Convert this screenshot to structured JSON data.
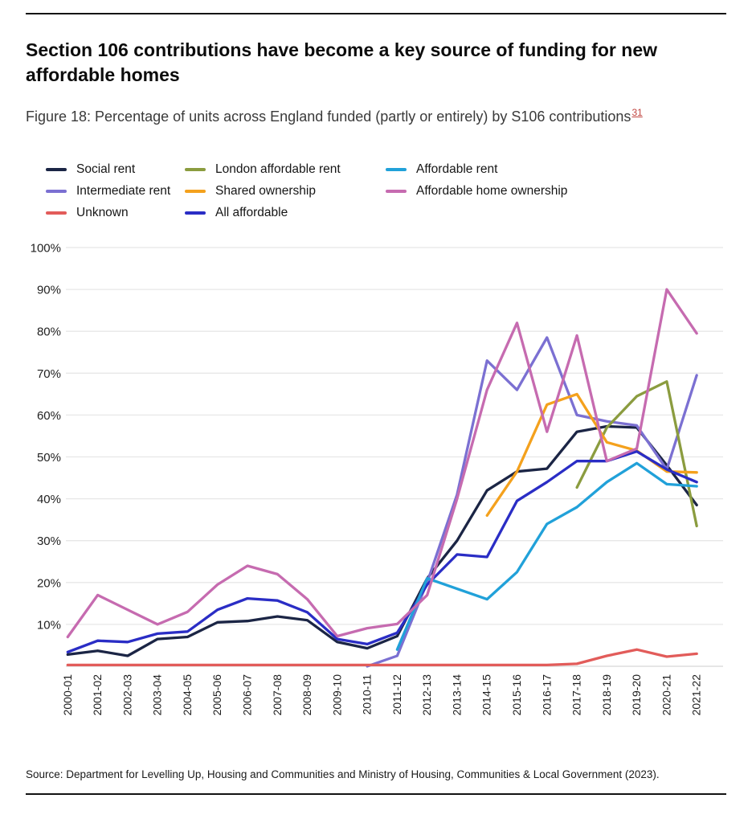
{
  "page": {
    "title": "Section 106 contributions have become a key source of funding for new affordable homes",
    "figure_caption": "Figure 18: Percentage of units across England funded (partly or entirely) by S106 contributions",
    "footnote_ref": "31",
    "source": "Source: Department for Levelling Up, Housing and Communities and Ministry of Housing, Communities & Local Government (2023)."
  },
  "colors": {
    "social_rent": "#1b2545",
    "intermediate_rent": "#7b70d2",
    "unknown": "#e25c5a",
    "london_affordable_rent": "#8b9c3f",
    "shared_ownership": "#f4a11d",
    "all_affordable": "#2a2dc5",
    "affordable_rent": "#21a1d9",
    "affordable_home_ownership": "#c66bb0",
    "gridline": "#e7e7e7",
    "axis_line": "#d8d8d8"
  },
  "legend": [
    {
      "label": "Social rent",
      "color": "#1b2545"
    },
    {
      "label": "Intermediate rent",
      "color": "#7b70d2"
    },
    {
      "label": "Unknown",
      "color": "#e25c5a"
    },
    {
      "label": "London affordable rent",
      "color": "#8b9c3f"
    },
    {
      "label": "Shared ownership",
      "color": "#f4a11d"
    },
    {
      "label": "All affordable",
      "color": "#2a2dc5"
    },
    {
      "label": "Affordable rent",
      "color": "#21a1d9"
    },
    {
      "label": "Affordable home ownership",
      "color": "#c66bb0"
    }
  ],
  "chart_data": {
    "type": "line",
    "title": "Figure 18: Percentage of units across England funded (partly or entirely) by S106 contributions",
    "xlabel": "",
    "ylabel": "",
    "ylim": [
      0,
      100
    ],
    "grid": "horizontal",
    "legend_position": "top",
    "y_tick_labels": [
      "10%",
      "20%",
      "30%",
      "40%",
      "50%",
      "60%",
      "70%",
      "80%",
      "90%",
      "100%"
    ],
    "categories": [
      "2000-01",
      "2001-02",
      "2002-03",
      "2003-04",
      "2004-05",
      "2005-06",
      "2006-07",
      "2007-08",
      "2008-09",
      "2009-10",
      "2010-11",
      "2011-12",
      "2012-13",
      "2013-14",
      "2014-15",
      "2015-16",
      "2016-17",
      "2017-18",
      "2018-19",
      "2019-20",
      "2020-21",
      "2021-22"
    ],
    "series": [
      {
        "name": "Social rent",
        "color": "#1b2545",
        "values": [
          2.8,
          3.7,
          2.5,
          6.5,
          7,
          10.5,
          10.8,
          11.9,
          11,
          5.8,
          4.3,
          7.2,
          21,
          30,
          42,
          46.5,
          47.2,
          56,
          57.3,
          57,
          48,
          38.5
        ]
      },
      {
        "name": "Intermediate rent",
        "color": "#7b70d2",
        "values": [
          null,
          null,
          null,
          null,
          null,
          null,
          null,
          null,
          null,
          null,
          0,
          2.5,
          20,
          41,
          73,
          66,
          78.5,
          60,
          58.5,
          57.5,
          47,
          69.5
        ]
      },
      {
        "name": "Unknown",
        "color": "#e25c5a",
        "values": [
          0.3,
          0.3,
          0.3,
          0.3,
          0.3,
          0.3,
          0.3,
          0.3,
          0.3,
          0.3,
          0.3,
          0.3,
          0.3,
          0.3,
          0.3,
          0.3,
          0.3,
          0.6,
          2.5,
          4,
          2.3,
          3
        ]
      },
      {
        "name": "London affordable rent",
        "color": "#8b9c3f",
        "values": [
          null,
          null,
          null,
          null,
          null,
          null,
          null,
          null,
          null,
          null,
          null,
          null,
          null,
          null,
          null,
          null,
          null,
          42.7,
          57,
          64.5,
          68,
          33.5
        ]
      },
      {
        "name": "Shared ownership",
        "color": "#f4a11d",
        "values": [
          null,
          null,
          null,
          null,
          null,
          null,
          null,
          null,
          null,
          null,
          null,
          null,
          null,
          null,
          36,
          46.5,
          62.5,
          65,
          53.5,
          51.5,
          46.5,
          46.3
        ]
      },
      {
        "name": "All affordable",
        "color": "#2a2dc5",
        "values": [
          3.4,
          6.1,
          5.8,
          7.8,
          8.3,
          13.5,
          16.2,
          15.7,
          12.9,
          6.5,
          5.3,
          8,
          19.5,
          26.7,
          26.1,
          39.5,
          44,
          49,
          49,
          51.3,
          47,
          44
        ]
      },
      {
        "name": "Affordable rent",
        "color": "#21a1d9",
        "values": [
          null,
          null,
          null,
          null,
          null,
          null,
          null,
          null,
          null,
          null,
          null,
          4,
          21,
          18.5,
          16,
          22.5,
          34,
          38,
          44,
          48.5,
          43.5,
          43
        ]
      },
      {
        "name": "Affordable home ownership",
        "color": "#c66bb0",
        "values": [
          7,
          17,
          13.5,
          10,
          13,
          19.5,
          24,
          22,
          16,
          7.2,
          9.1,
          10.1,
          17,
          40,
          66,
          82,
          56,
          79,
          49,
          52,
          90,
          79.5
        ]
      }
    ]
  }
}
